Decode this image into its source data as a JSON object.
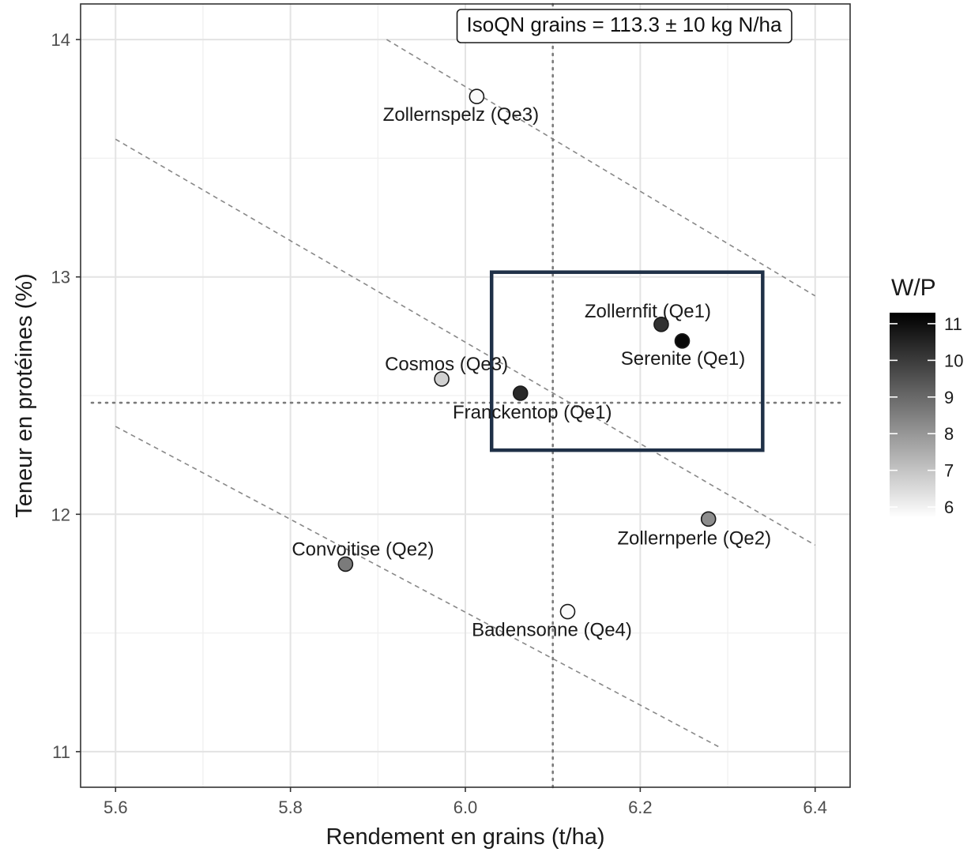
{
  "chart_data": {
    "type": "scatter",
    "xlabel": "Rendement en grains (t/ha)",
    "ylabel": "Teneur en protéines (%)",
    "xlim": [
      5.56,
      6.44
    ],
    "ylim": [
      10.85,
      14.15
    ],
    "x_ticks": [
      5.6,
      5.8,
      6.0,
      6.2,
      6.4
    ],
    "x_tick_labels": [
      "5.6",
      "5.8",
      "6.0",
      "6.2",
      "6.4"
    ],
    "y_ticks": [
      11,
      12,
      13,
      14
    ],
    "y_tick_labels": [
      "11",
      "12",
      "13",
      "14"
    ],
    "grid": true,
    "annotation": "IsoQN grains = 113.3 ± 10 kg N/ha",
    "vline_x": 6.1,
    "hline_y": 12.47,
    "iso_lines": [
      {
        "x": [
          5.91,
          6.4
        ],
        "y": [
          14.0,
          12.92
        ]
      },
      {
        "x": [
          5.6,
          6.4
        ],
        "y": [
          13.58,
          11.87
        ]
      },
      {
        "x": [
          5.6,
          6.29
        ],
        "y": [
          12.37,
          11.02
        ]
      }
    ],
    "color_scale": {
      "title": "W/P",
      "ticks": [
        6,
        7,
        8,
        9,
        10,
        11
      ],
      "tick_labels": [
        "6",
        "7",
        "8",
        "9",
        "10",
        "11"
      ],
      "range": [
        5.7,
        11.3
      ],
      "low_color": "#ffffff",
      "high_color": "#000000"
    },
    "points": [
      {
        "name": "Zollernspelz (Qe3)",
        "x": 6.013,
        "y": 13.76,
        "wp": 5.8
      },
      {
        "name": "Zollernfit (Qe1)",
        "x": 6.224,
        "y": 12.8,
        "wp": 10.2
      },
      {
        "name": "Serenite (Qe1)",
        "x": 6.248,
        "y": 12.73,
        "wp": 11.1
      },
      {
        "name": "Cosmos (Qe3)",
        "x": 5.973,
        "y": 12.57,
        "wp": 6.7
      },
      {
        "name": "Franckentop (Qe1)",
        "x": 6.063,
        "y": 12.51,
        "wp": 10.4
      },
      {
        "name": "Zollernperle (Qe2)",
        "x": 6.278,
        "y": 11.98,
        "wp": 8.2
      },
      {
        "name": "Convoitise (Qe2)",
        "x": 5.863,
        "y": 11.79,
        "wp": 8.6
      },
      {
        "name": "Badensonne (Qe4)",
        "x": 6.117,
        "y": 11.59,
        "wp": 5.8
      }
    ],
    "highlight_box": {
      "x": [
        6.03,
        6.34
      ],
      "y": [
        12.27,
        13.02
      ],
      "color": "#1f3047"
    }
  }
}
